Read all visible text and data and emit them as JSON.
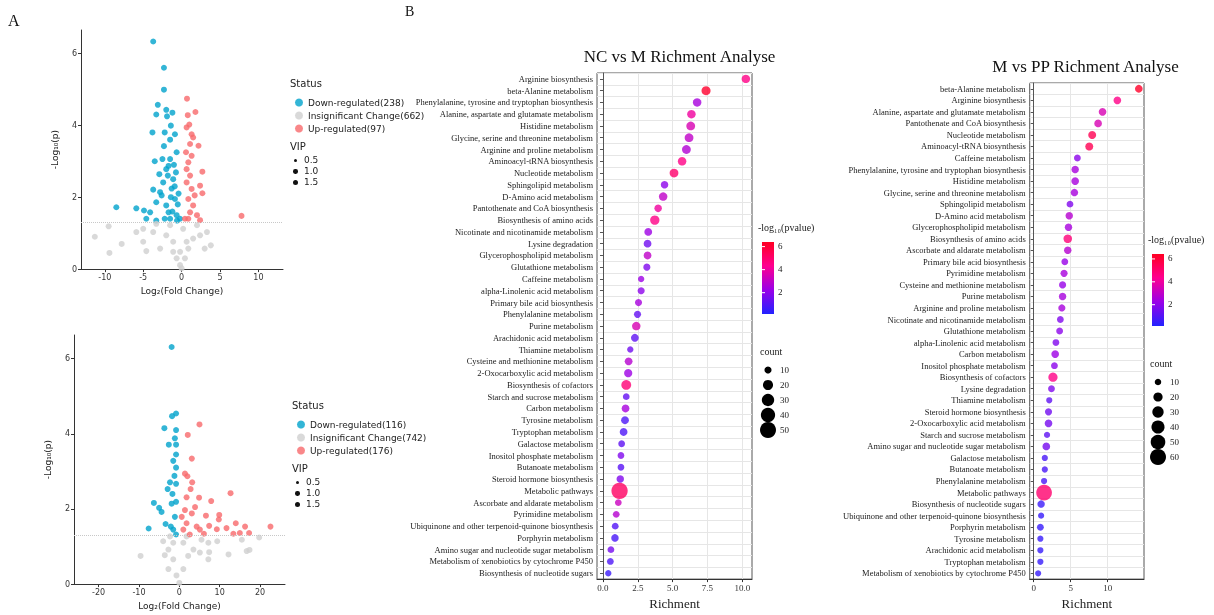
{
  "chart_data": [
    {
      "type": "scatter",
      "title": "A",
      "xlabel": "Log₂(Fold Change)",
      "ylabel": "-Log₁₀(p)",
      "legend_title": "Status",
      "legend": "right",
      "marker": "circle",
      "annotations": [
        "VIP",
        "0.5",
        "1.0",
        "1.5"
      ],
      "xlim": [
        -13.1,
        13.2
      ],
      "xticks": [
        -10,
        -5,
        0,
        5,
        10
      ],
      "ylim": [
        0,
        6.65
      ],
      "yticks": [
        0,
        2,
        4,
        6
      ],
      "ref_lines": [
        {
          "axis": "y",
          "value": 1.3,
          "line_style": "dotted",
          "color": "#c8c8c8"
        }
      ],
      "series": [
        {
          "name": "Down-regulated(238)",
          "color": "#00a3cc",
          "x": [
            -3.7,
            -2.3,
            -2.3,
            -3.1,
            -3.3,
            -2.0,
            -1.2,
            -1.9,
            -3.8,
            -1.4,
            -0.65,
            -1.5,
            -2.3,
            -3.5,
            -2.5,
            -1.7,
            -2.9,
            -3.7,
            -2.4,
            -1.1,
            -8.5,
            -5.9,
            -4.9,
            -4.1,
            -3.3,
            -2.6,
            -2.0,
            -4.6,
            -3.3,
            -1.5,
            -0.65,
            -2.2,
            -0.87,
            -1.3,
            -2.0,
            -2.8,
            -0.74,
            -1.5,
            -2.2,
            -0.87,
            -0.2,
            -1.7,
            -0.5,
            -0.9,
            -1.2,
            -0.4,
            -1.8,
            -1.0,
            -0.6,
            -1.4
          ],
          "values": [
            6.33,
            5.6,
            4.99,
            4.57,
            4.3,
            4.43,
            4.35,
            4.25,
            3.8,
            3.99,
            3.25,
            3.6,
            3.42,
            3.0,
            3.06,
            2.87,
            2.64,
            2.21,
            2.41,
            2.5,
            1.72,
            1.69,
            1.63,
            1.58,
            1.86,
            2.05,
            1.77,
            1.4,
            1.35,
            1.4,
            1.5,
            1.4,
            1.95,
            2.24,
            2.78,
            2.14,
            2.69,
            3.06,
            3.8,
            3.75,
            1.4,
            1.58,
            1.8,
            2.3,
            1.6,
            2.1,
            2.6,
            2.9,
            1.35,
            2.0
          ]
        },
        {
          "name": "Insignificant Change(662)",
          "color": "#d0d0d0",
          "x": [
            -11.3,
            -9.5,
            -9.4,
            -7.8,
            -5.0,
            -4.6,
            -3.7,
            -2.8,
            -2.0,
            -1.1,
            -0.2,
            0,
            -0.65,
            0.43,
            0.87,
            1.5,
            2.4,
            3.3,
            3.8,
            2.0,
            -1.5,
            -3.3,
            -5.0,
            0.2,
            -1.1,
            0.65,
            -0.2,
            -5.9,
            3.0
          ],
          "values": [
            0.9,
            1.19,
            0.45,
            0.7,
            0.76,
            0.5,
            1.03,
            0.57,
            0.94,
            0.48,
            0.11,
            0.02,
            0.3,
            0.3,
            0.57,
            0.85,
            0.94,
            1.03,
            0.66,
            1.22,
            1.22,
            1.26,
            1.12,
            1.12,
            0.76,
            0.76,
            0.48,
            1.03,
            0.57
          ]
        },
        {
          "name": "Up-regulated(97)",
          "color": "#f8696b",
          "x": [
            0.7,
            1.8,
            0.8,
            1.0,
            0.65,
            1.3,
            1.5,
            2.2,
            1.1,
            0.57,
            2.7,
            2.4,
            2.7,
            0.87,
            1.1,
            0.65,
            1.3,
            0.87,
            1.5,
            2.0,
            2.4,
            7.8,
            0.43,
            1.1,
            1.7,
            0.65,
            1.3,
            0.87
          ],
          "values": [
            4.74,
            4.37,
            4.28,
            4.02,
            3.94,
            3.75,
            3.66,
            3.43,
            3.48,
            3.25,
            2.71,
            2.32,
            2.11,
            2.97,
            2.6,
            2.41,
            2.23,
            1.95,
            1.77,
            1.5,
            1.36,
            1.48,
            1.4,
            1.58,
            2.05,
            2.78,
            3.15,
            1.4
          ]
        }
      ]
    },
    {
      "type": "scatter",
      "xlabel": "Log₂(Fold Change)",
      "ylabel": "-Log₁₀(p)",
      "legend_title": "Status",
      "legend": "right",
      "marker": "circle",
      "annotations": [
        "VIP",
        "0.5",
        "1.0",
        "1.5"
      ],
      "xlim": [
        -26.1,
        26.2
      ],
      "xticks": [
        -20,
        -10,
        0,
        10,
        20
      ],
      "ylim": [
        0,
        6.63
      ],
      "yticks": [
        0,
        2,
        4,
        6
      ],
      "ref_lines": [
        {
          "axis": "y",
          "value": 1.3,
          "line_style": "dotted",
          "color": "#c8c8c8"
        }
      ],
      "series": [
        {
          "name": "Down-regulated(116)",
          "color": "#00a3cc",
          "x": [
            -1.9,
            -0.8,
            -1.8,
            -3.7,
            -0.8,
            -1.1,
            -2.6,
            -0.8,
            -1.5,
            -0.8,
            -1.2,
            -2.3,
            -2.9,
            -1.7,
            -0.8,
            -6.3,
            -5.0,
            -4.4,
            -3.4,
            -7.6,
            -2.1,
            -1.1,
            -1.5,
            -0.8,
            -1.9,
            -0.8,
            -0.8
          ],
          "values": [
            6.31,
            4.54,
            4.47,
            4.15,
            4.1,
            3.88,
            3.71,
            3.71,
            3.28,
            3.1,
            2.88,
            2.71,
            2.53,
            2.4,
            2.19,
            2.16,
            2.03,
            1.92,
            1.6,
            1.48,
            1.53,
            1.79,
            1.45,
            1.32,
            2.14,
            2.67,
            3.45
          ]
        },
        {
          "name": "Insignificant Change(742)",
          "color": "#d0d0d0",
          "x": [
            -9.6,
            -4.0,
            -3.6,
            -2.7,
            -1.5,
            -0.7,
            0,
            1.0,
            2.2,
            3.5,
            5.5,
            7.2,
            7.2,
            7.4,
            9.4,
            12.2,
            15.5,
            16.7,
            17.4,
            19.8,
            -2.7,
            1.0,
            -1.5,
            -2.3,
            1.8,
            5.1
          ],
          "values": [
            0.75,
            1.14,
            0.77,
            0.4,
            0.66,
            0.23,
            0.03,
            0.4,
            0.75,
            0.92,
            1.18,
            1.1,
            0.66,
            0.85,
            1.14,
            0.79,
            1.18,
            0.88,
            0.91,
            1.24,
            0.92,
            1.1,
            1.1,
            1.27,
            1.27,
            0.84
          ]
        },
        {
          "name": "Up-regulated(176)",
          "color": "#f8696b",
          "x": [
            5.0,
            2.1,
            3.1,
            1.4,
            2.0,
            3.2,
            2.8,
            4.9,
            12.7,
            7.9,
            1.8,
            1.4,
            3.1,
            1.8,
            0.6,
            6.6,
            9.9,
            9.8,
            9.3,
            11.7,
            14.0,
            16.3,
            17.3,
            22.6,
            13.4,
            7.4,
            6.1,
            4.3,
            5.1,
            2.6,
            1.0,
            3.9,
            15.0
          ],
          "values": [
            4.25,
            3.97,
            3.34,
            2.94,
            2.87,
            2.71,
            2.53,
            2.3,
            2.42,
            2.21,
            2.31,
            1.97,
            1.88,
            1.62,
            1.79,
            1.82,
            1.84,
            1.72,
            1.46,
            1.49,
            1.62,
            1.53,
            1.36,
            1.53,
            1.34,
            1.55,
            1.34,
            1.53,
            1.45,
            1.32,
            1.45,
            2.05,
            1.36
          ]
        }
      ]
    },
    {
      "type": "bubble",
      "orientation": "horizontal",
      "title": "NC vs M Richment Analyse",
      "xlabel": "Richment",
      "clabel": "-log₁₀(pvalue)",
      "legend_title": "count",
      "annotations": [
        "B"
      ],
      "grid": true,
      "xlim": [
        -0.43,
        10.7
      ],
      "xticks": [
        {
          "value": 0,
          "label": "0.0"
        },
        2.5,
        {
          "value": 5,
          "label": "5.0"
        },
        7.5,
        {
          "value": 10,
          "label": "10.0"
        }
      ],
      "clim": [
        0.15,
        6.4
      ],
      "cticks": [
        2,
        4,
        6
      ],
      "size_legend": [
        10,
        20,
        30,
        40,
        50
      ],
      "categories": [
        "Arginine biosynthesis",
        "beta-Alanine metabolism",
        "Phenylalanine, tyrosine and tryptophan biosynthesis",
        "Alanine, aspartate and glutamate metabolism",
        "Histidine metabolism",
        "Glycine, serine and threonine metabolism",
        "Arginine and proline metabolism",
        "Aminoacyl-tRNA biosynthesis",
        "Nucleotide metabolism",
        "Sphingolipid metabolism",
        "D-Amino acid metabolism",
        "Pantothenate and CoA biosynthesis",
        "Biosynthesis of amino acids",
        "Nicotinate and nicotinamide metabolism",
        "Lysine degradation",
        "Glycerophospholipid metabolism",
        "Glutathione metabolism",
        "Caffeine metabolism",
        "alpha-Linolenic acid metabolism",
        "Primary bile acid biosynthesis",
        "Phenylalanine metabolism",
        "Purine metabolism",
        "Arachidonic acid metabolism",
        "Thiamine metabolism",
        "Cysteine and methionine metabolism",
        "2-Oxocarboxylic acid metabolism",
        "Biosynthesis of cofactors",
        "Starch and sucrose metabolism",
        "Carbon metabolism",
        "Tyrosine metabolism",
        "Tryptophan metabolism",
        "Galactose metabolism",
        "Inositol phosphate metabolism",
        "Butanoate metabolism",
        "Steroid hormone biosynthesis",
        "Metabolic pathways",
        "Ascorbate and aldarate metabolism",
        "Pyrimidine metabolism",
        "Ubiquinone and other terpenoid-quinone biosynthesis",
        "Porphyrin metabolism",
        "Amino sugar and nucleotide sugar metabolism",
        "Metabolism of xenobiotics by cytochrome P450",
        "Biosynthesis of nucleotide sugars"
      ],
      "values": [
        10.26,
        7.4,
        6.76,
        6.35,
        6.3,
        6.18,
        5.99,
        5.68,
        5.1,
        4.42,
        4.32,
        3.96,
        3.72,
        3.25,
        3.2,
        3.2,
        3.15,
        2.74,
        2.74,
        2.55,
        2.48,
        2.39,
        2.29,
        1.96,
        1.84,
        1.81,
        1.67,
        1.67,
        1.62,
        1.58,
        1.48,
        1.34,
        1.29,
        1.29,
        1.24,
        1.19,
        1.1,
        0.95,
        0.88,
        0.86,
        0.57,
        0.53,
        0.38
      ],
      "sizes": [
        14,
        16,
        14,
        14,
        15,
        15,
        15,
        14,
        15,
        11,
        14,
        11,
        17,
        12,
        12,
        12,
        10,
        8,
        10,
        10,
        10,
        14,
        12,
        8,
        12,
        13,
        19,
        9,
        12,
        12,
        12,
        9,
        9,
        9,
        11,
        52,
        9,
        9,
        9,
        11,
        9,
        9,
        8
      ],
      "cvalues": [
        4.5,
        6.2,
        2.5,
        4,
        3.5,
        3,
        2.7,
        4.5,
        5,
        2,
        3,
        4,
        4.5,
        2.3,
        1.5,
        3,
        1.8,
        2.3,
        2,
        2.5,
        1.3,
        3.5,
        1.2,
        1.5,
        2.8,
        2.3,
        4.8,
        1.3,
        2.5,
        0.9,
        0.9,
        1.2,
        1.8,
        1.1,
        1.8,
        5.2,
        3.2,
        2.8,
        1,
        0.8,
        1.6,
        0.9,
        0.6
      ]
    },
    {
      "type": "bubble",
      "orientation": "horizontal",
      "title": "M vs PP Richment Analyse",
      "xlabel": "Richment",
      "clabel": "-log₁₀(pvalue)",
      "legend_title": "count",
      "grid": true,
      "xlim": [
        -0.54,
        14.9
      ],
      "xticks": [
        0,
        5,
        10
      ],
      "clim": [
        0.14,
        6.43
      ],
      "cticks": [
        2,
        4,
        6
      ],
      "size_legend": [
        10,
        20,
        30,
        40,
        50,
        60
      ],
      "categories": [
        "beta-Alanine metabolism",
        "Arginine biosynthesis",
        "Alanine, aspartate and glutamate metabolism",
        "Pantothenate and CoA biosynthesis",
        "Nucleotide metabolism",
        "Aminoacyl-tRNA biosynthesis",
        "Caffeine metabolism",
        "Phenylalanine, tyrosine and tryptophan biosynthesis",
        "Histidine metabolism",
        "Glycine, serine and threonine metabolism",
        "Sphingolipid metabolism",
        "D-Amino acid metabolism",
        "Glycerophospholipid metabolism",
        "Biosynthesis of amino acids",
        "Ascorbate and aldarate metabolism",
        "Primary bile acid biosynthesis",
        "Pyrimidine metabolism",
        "Cysteine and methionine metabolism",
        "Purine metabolism",
        "Arginine and proline metabolism",
        "Nicotinate and nicotinamide metabolism",
        "Glutathione metabolism",
        "alpha-Linolenic acid metabolism",
        "Carbon metabolism",
        "Inositol phosphate metabolism",
        "Biosynthesis of cofactors",
        "Lysine degradation",
        "Thiamine metabolism",
        "Steroid hormone biosynthesis",
        "2-Oxocarboxylic acid metabolism",
        "Starch and sucrose metabolism",
        "Amino sugar and nucleotide sugar metabolism",
        "Galactose metabolism",
        "Butanoate metabolism",
        "Phenylalanine metabolism",
        "Metabolic pathways",
        "Biosynthesis of nucleotide sugars",
        "Ubiquinone and other terpenoid-quinone biosynthesis",
        "Porphyrin metabolism",
        "Tyrosine metabolism",
        "Arachidonic acid metabolism",
        "Tryptophan metabolism",
        "Metabolism of xenobiotics by cytochrome P450"
      ],
      "values": [
        14.2,
        11.3,
        9.3,
        8.7,
        7.9,
        7.5,
        5.9,
        5.6,
        5.6,
        5.5,
        4.9,
        4.8,
        4.7,
        4.6,
        4.6,
        4.2,
        4.1,
        3.9,
        3.9,
        3.8,
        3.6,
        3.5,
        3.0,
        2.9,
        2.8,
        2.6,
        2.4,
        2.1,
        2.0,
        2.0,
        1.8,
        1.7,
        1.5,
        1.5,
        1.4,
        1.4,
        1.0,
        1.0,
        0.9,
        0.9,
        0.9,
        0.9,
        0.6
      ],
      "sizes": [
        14,
        14,
        14,
        14,
        15,
        15,
        11,
        13,
        14,
        13,
        11,
        13,
        13,
        17,
        13,
        11,
        12,
        12,
        13,
        12,
        11,
        11,
        11,
        14,
        11,
        20,
        11,
        9,
        12,
        14,
        9,
        14,
        9,
        9,
        9,
        58,
        13,
        9,
        11,
        9,
        9,
        9,
        9
      ],
      "cvalues": [
        6.3,
        4.5,
        3.5,
        3.5,
        5.5,
        5.5,
        2,
        2.5,
        2.5,
        2.5,
        1.8,
        2.8,
        2.5,
        4.8,
        2.8,
        2.2,
        2.5,
        2.2,
        2.5,
        2.5,
        1.8,
        2,
        1.8,
        2.3,
        2,
        4.5,
        1.8,
        1.2,
        1.5,
        1.6,
        1.2,
        1.6,
        0.8,
        0.8,
        0.8,
        5,
        0.6,
        0.5,
        0.5,
        0.5,
        0.5,
        0.5,
        0.5
      ]
    }
  ]
}
